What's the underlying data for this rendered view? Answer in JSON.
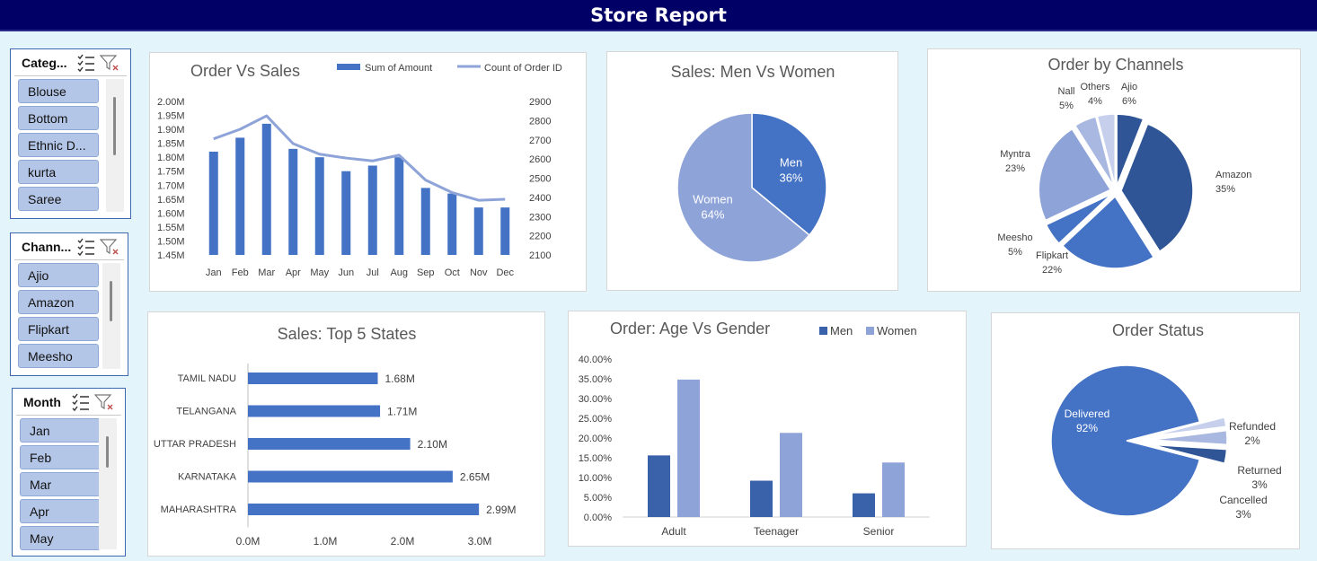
{
  "report_title": "Store Report",
  "colors": {
    "title_bg": "#000066",
    "primary": "#4472c4",
    "secondary": "#8ea3d8"
  },
  "slicers": {
    "category": {
      "title": "Categ...",
      "items": [
        "Blouse",
        "Bottom",
        "Ethnic D...",
        "kurta",
        "Saree"
      ]
    },
    "channel": {
      "title": "Chann...",
      "items": [
        "Ajio",
        "Amazon",
        "Flipkart",
        "Meesho"
      ]
    },
    "month": {
      "title": "Month",
      "items": [
        "Jan",
        "Feb",
        "Mar",
        "Apr",
        "May"
      ]
    },
    "icons": {
      "multi_select": "multi-select-icon",
      "clear_filter": "clear-filter-icon"
    }
  },
  "charts": {
    "order_vs_sales": {
      "title": "Order Vs Sales",
      "type": "bar+line",
      "categories": [
        "Jan",
        "Feb",
        "Mar",
        "Apr",
        "May",
        "Jun",
        "Jul",
        "Aug",
        "Sep",
        "Oct",
        "Nov",
        "Dec"
      ],
      "series": [
        {
          "name": "Sum of Amount",
          "axis": "left",
          "values": [
            1.82,
            1.87,
            1.92,
            1.83,
            1.8,
            1.75,
            1.77,
            1.8,
            1.69,
            1.67,
            1.62,
            1.62
          ]
        },
        {
          "name": "Count of Order ID",
          "axis": "right",
          "values": [
            2705,
            2755,
            2825,
            2680,
            2625,
            2605,
            2590,
            2620,
            2490,
            2425,
            2385,
            2390
          ]
        }
      ],
      "y_left": {
        "min": 1.45,
        "max": 2.0,
        "step": 0.05,
        "labels": [
          "2.00M",
          "1.95M",
          "1.90M",
          "1.85M",
          "1.80M",
          "1.75M",
          "1.70M",
          "1.65M",
          "1.60M",
          "1.55M",
          "1.50M",
          "1.45M"
        ]
      },
      "y_right": {
        "min": 2100,
        "max": 2900,
        "step": 100,
        "labels": [
          "2900",
          "2800",
          "2700",
          "2600",
          "2500",
          "2400",
          "2300",
          "2200",
          "2100"
        ]
      }
    },
    "men_vs_women": {
      "title": "Sales: Men Vs Women",
      "type": "pie",
      "slices": [
        {
          "label": "Men",
          "value": 36,
          "pct": "36%"
        },
        {
          "label": "Women",
          "value": 64,
          "pct": "64%"
        }
      ]
    },
    "order_by_channels": {
      "title": "Order by Channels",
      "type": "pie",
      "slices": [
        {
          "label": "Ajio",
          "value": 6,
          "pct": "6%"
        },
        {
          "label": "Amazon",
          "value": 35,
          "pct": "35%"
        },
        {
          "label": "Flipkart",
          "value": 22,
          "pct": "22%"
        },
        {
          "label": "Meesho",
          "value": 5,
          "pct": "5%"
        },
        {
          "label": "Myntra",
          "value": 23,
          "pct": "23%"
        },
        {
          "label": "Nall",
          "value": 5,
          "pct": "5%"
        },
        {
          "label": "Others",
          "value": 4,
          "pct": "4%"
        }
      ]
    },
    "top_states": {
      "title": "Sales: Top 5 States",
      "type": "bar",
      "categories": [
        "TAMIL NADU",
        "TELANGANA",
        "UTTAR PRADESH",
        "KARNATAKA",
        "MAHARASHTRA"
      ],
      "values": [
        1.68,
        1.71,
        2.1,
        2.65,
        2.99
      ],
      "value_labels": [
        "1.68M",
        "1.71M",
        "2.10M",
        "2.65M",
        "2.99M"
      ],
      "x_axis": {
        "min": 0,
        "max": 3.0,
        "labels": [
          "0.0M",
          "1.0M",
          "2.0M",
          "3.0M"
        ]
      }
    },
    "age_vs_gender": {
      "title": "Order: Age Vs Gender",
      "type": "bar",
      "categories": [
        "Adult",
        "Teenager",
        "Senior"
      ],
      "series": [
        {
          "name": "Men",
          "values": [
            15.6,
            9.2,
            6.0
          ]
        },
        {
          "name": "Women",
          "values": [
            34.8,
            21.3,
            13.8
          ]
        }
      ],
      "y_axis": {
        "min": 0,
        "max": 40,
        "labels": [
          "40.00%",
          "35.00%",
          "30.00%",
          "25.00%",
          "20.00%",
          "15.00%",
          "10.00%",
          "5.00%",
          "0.00%"
        ]
      }
    },
    "order_status": {
      "title": "Order Status",
      "type": "pie",
      "slices": [
        {
          "label": "Delivered",
          "value": 92,
          "pct": "92%"
        },
        {
          "label": "Refunded",
          "value": 2,
          "pct": "2%"
        },
        {
          "label": "Returned",
          "value": 3,
          "pct": "3%"
        },
        {
          "label": "Cancelled",
          "value": 3,
          "pct": "3%"
        }
      ]
    }
  }
}
